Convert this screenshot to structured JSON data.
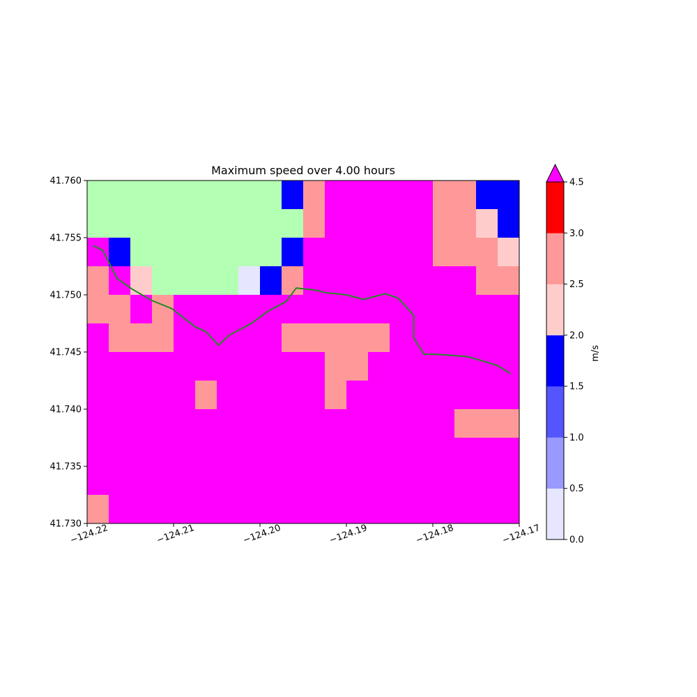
{
  "chart_data": {
    "type": "heatmap",
    "title": "Maximum speed over 4.00 hours",
    "xlabel": "",
    "ylabel": "",
    "xlim": [
      -124.22,
      -124.17
    ],
    "ylim": [
      41.73,
      41.76
    ],
    "x_ticks": [
      -124.22,
      -124.21,
      -124.2,
      -124.19,
      -124.18,
      -124.17
    ],
    "x_tick_labels": [
      "−124.22",
      "−124.21",
      "−124.20",
      "−124.19",
      "−124.18",
      "−124.17"
    ],
    "y_ticks": [
      41.73,
      41.735,
      41.74,
      41.745,
      41.75,
      41.755,
      41.76
    ],
    "y_tick_labels": [
      "41.730",
      "41.735",
      "41.740",
      "41.745",
      "41.750",
      "41.755",
      "41.760"
    ],
    "grid": false,
    "cell_size_deg": {
      "dx": 0.0025,
      "dy": 0.0025
    },
    "legend_note": "row 0 = northernmost row (41.760 to 41.7575); column 0 = westernmost column (-124.22 to -124.2175); class codes index colorbar levels; 'L' = land mask (light green); 'M' = above 4.5 m/s (overflow, magenta)",
    "grid_classes": [
      [
        "L",
        "L",
        "L",
        "L",
        "L",
        "L",
        "L",
        "L",
        "L",
        "3",
        "5",
        "M",
        "M",
        "M",
        "M",
        "M",
        "5",
        "5",
        "3",
        "3"
      ],
      [
        "L",
        "L",
        "L",
        "L",
        "L",
        "L",
        "L",
        "L",
        "L",
        "L",
        "5",
        "M",
        "M",
        "M",
        "M",
        "M",
        "5",
        "5",
        "4",
        "3"
      ],
      [
        "M",
        "3",
        "L",
        "L",
        "L",
        "L",
        "L",
        "L",
        "L",
        "3",
        "M",
        "M",
        "M",
        "M",
        "M",
        "M",
        "5",
        "5",
        "5",
        "4"
      ],
      [
        "5",
        "M",
        "4",
        "L",
        "L",
        "L",
        "L",
        "0",
        "3",
        "5",
        "M",
        "M",
        "M",
        "M",
        "M",
        "M",
        "M",
        "M",
        "5",
        "5"
      ],
      [
        "5",
        "5",
        "M",
        "5",
        "M",
        "M",
        "M",
        "M",
        "M",
        "M",
        "M",
        "M",
        "M",
        "M",
        "M",
        "M",
        "M",
        "M",
        "M",
        "M"
      ],
      [
        "M",
        "5",
        "5",
        "5",
        "M",
        "M",
        "M",
        "M",
        "M",
        "5",
        "5",
        "5",
        "5",
        "5",
        "M",
        "M",
        "M",
        "M",
        "M",
        "M"
      ],
      [
        "M",
        "M",
        "M",
        "M",
        "M",
        "M",
        "M",
        "M",
        "M",
        "M",
        "M",
        "5",
        "5",
        "M",
        "M",
        "M",
        "M",
        "M",
        "M",
        "M"
      ],
      [
        "M",
        "M",
        "M",
        "M",
        "M",
        "5",
        "M",
        "M",
        "M",
        "M",
        "M",
        "5",
        "M",
        "M",
        "M",
        "M",
        "M",
        "M",
        "M",
        "M"
      ],
      [
        "M",
        "M",
        "M",
        "M",
        "M",
        "M",
        "M",
        "M",
        "M",
        "M",
        "M",
        "M",
        "M",
        "M",
        "M",
        "M",
        "M",
        "5",
        "5",
        "5"
      ],
      [
        "M",
        "M",
        "M",
        "M",
        "M",
        "M",
        "M",
        "M",
        "M",
        "M",
        "M",
        "M",
        "M",
        "M",
        "M",
        "M",
        "M",
        "M",
        "M",
        "M"
      ],
      [
        "M",
        "M",
        "M",
        "M",
        "M",
        "M",
        "M",
        "M",
        "M",
        "M",
        "M",
        "M",
        "M",
        "M",
        "M",
        "M",
        "M",
        "M",
        "M",
        "M"
      ],
      [
        "5",
        "M",
        "M",
        "M",
        "M",
        "M",
        "M",
        "M",
        "M",
        "M",
        "M",
        "M",
        "M",
        "M",
        "M",
        "M",
        "M",
        "M",
        "M",
        "M"
      ]
    ],
    "coastline": [
      [
        -124.2193,
        41.7543
      ],
      [
        -124.2182,
        41.7539
      ],
      [
        -124.2165,
        41.7514
      ],
      [
        -124.2148,
        41.7505
      ],
      [
        -124.2125,
        41.7495
      ],
      [
        -124.2102,
        41.7488
      ],
      [
        -124.2075,
        41.7472
      ],
      [
        -124.2063,
        41.7468
      ],
      [
        -124.2048,
        41.7456
      ],
      [
        -124.2035,
        41.7465
      ],
      [
        -124.201,
        41.7475
      ],
      [
        -124.199,
        41.7486
      ],
      [
        -124.197,
        41.7494
      ],
      [
        -124.1958,
        41.7506
      ],
      [
        -124.1935,
        41.7504
      ],
      [
        -124.1925,
        41.7502
      ],
      [
        -124.19,
        41.75
      ],
      [
        -124.188,
        41.7496
      ],
      [
        -124.1855,
        41.7501
      ],
      [
        -124.184,
        41.7497
      ],
      [
        -124.1822,
        41.7482
      ],
      [
        -124.1822,
        41.7462
      ],
      [
        -124.181,
        41.7448
      ],
      [
        -124.1795,
        41.7448
      ],
      [
        -124.176,
        41.7446
      ],
      [
        -124.1737,
        41.7441
      ],
      [
        -124.1725,
        41.7438
      ],
      [
        -124.171,
        41.7431
      ]
    ],
    "coastline_color": "#228b22",
    "land_color": "#b3ffb3",
    "overflow_color": "#ff00ff",
    "colorbar": {
      "label": "m/s",
      "ticks": [
        "0.0",
        "0.5",
        "1.0",
        "1.5",
        "2.0",
        "2.5",
        "3.0",
        "4.5"
      ],
      "levels": [
        0.0,
        0.5,
        1.0,
        1.5,
        2.0,
        2.5,
        3.0,
        4.5
      ],
      "colors": [
        "#e6e6ff",
        "#9999ff",
        "#5555ff",
        "#0000ff",
        "#ffcccc",
        "#ff9999",
        "#ff0000"
      ],
      "extend": "max"
    }
  }
}
